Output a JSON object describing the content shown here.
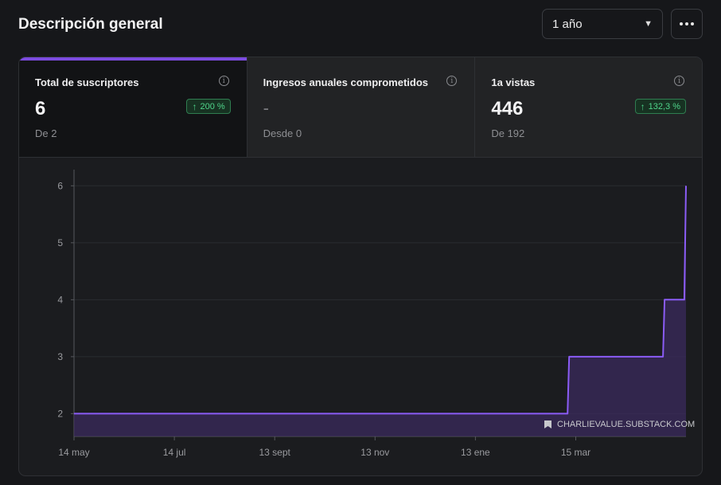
{
  "header": {
    "title": "Descripción general",
    "range_value": "1 año",
    "more_icon": "more-horizontal-icon"
  },
  "stats": [
    {
      "label": "Total de suscriptores",
      "value": "6",
      "sub": "De 2",
      "badge": "200 %",
      "selected": true
    },
    {
      "label": "Ingresos anuales comprometidos",
      "value": "-",
      "sub": "Desde 0",
      "badge": null,
      "selected": false
    },
    {
      "label": "1a vistas",
      "value": "446",
      "sub": "De 192",
      "badge": "132,3 %",
      "selected": false
    }
  ],
  "colors": {
    "accent": "#7c4be0",
    "line": "#8b5cf6",
    "area": "#3b2a5e",
    "badge_text": "#4fd48a",
    "badge_bg": "#173222"
  },
  "chart_data": {
    "type": "area",
    "watermark": "CHARLIEVALUE.SUBSTACK.COM",
    "xlim": [
      0,
      372
    ],
    "ylim": [
      1.6,
      6.2
    ],
    "yticks": [
      2,
      3,
      4,
      5,
      6
    ],
    "xticks": [
      {
        "label": "14 may",
        "x": 0
      },
      {
        "label": "14 jul",
        "x": 61
      },
      {
        "label": "13 sept",
        "x": 122
      },
      {
        "label": "13 nov",
        "x": 183
      },
      {
        "label": "13 ene",
        "x": 244
      },
      {
        "label": "15 mar",
        "x": 305
      }
    ],
    "series": [
      {
        "x": [
          0,
          300,
          301,
          358,
          359,
          365,
          366,
          371,
          372
        ],
        "y": [
          2,
          2,
          3,
          3,
          4,
          4,
          4,
          4,
          6
        ]
      }
    ],
    "grid": true
  }
}
